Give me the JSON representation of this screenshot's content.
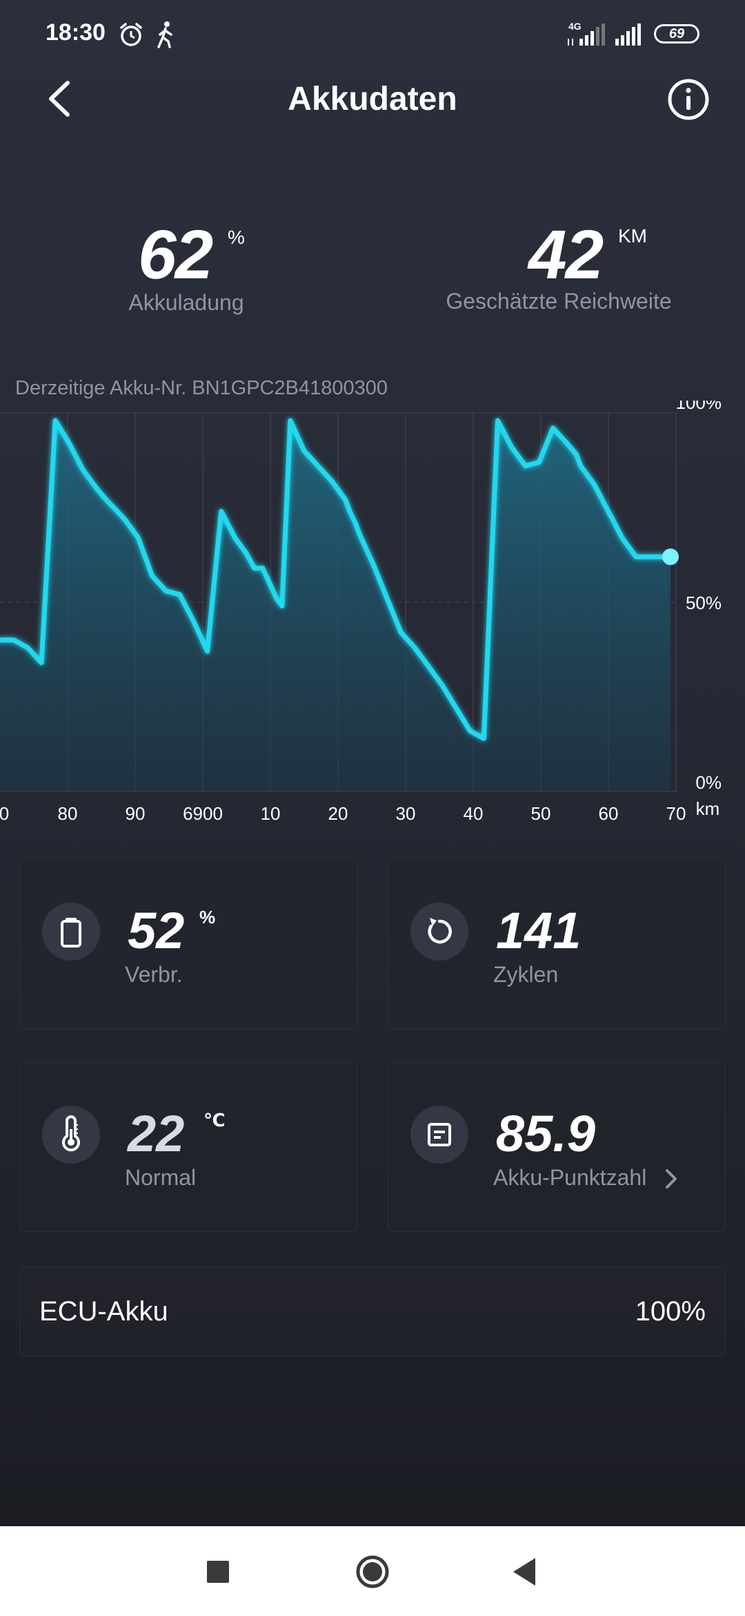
{
  "status_bar": {
    "time": "18:30",
    "network": "4G",
    "battery": "69"
  },
  "header": {
    "title": "Akkudaten"
  },
  "summary": {
    "charge_value": "62",
    "charge_unit": "%",
    "charge_label": "Akkuladung",
    "range_value": "42",
    "range_unit": "KM",
    "range_label": "Geschätzte Reichweite"
  },
  "battery_number": "Derzeitige Akku-Nr. BN1GPC2B41800300",
  "chart_data": {
    "type": "area",
    "xlabel": "km",
    "x_tick_labels": [
      "0",
      "80",
      "90",
      "6900",
      "10",
      "20",
      "30",
      "40",
      "50",
      "60",
      "70"
    ],
    "y_tick_labels": [
      "100%",
      "50%",
      "0%"
    ],
    "ylim": [
      0,
      100
    ],
    "grid": true,
    "accent_color": "#22d8ee",
    "series": [
      {
        "x": [
          0,
          1,
          2,
          3,
          4,
          5,
          6,
          7,
          7.7,
          9,
          10,
          11,
          12,
          13,
          14,
          15,
          16,
          17,
          17.8,
          18.4,
          19,
          20,
          20.4,
          21,
          22,
          23,
          24,
          25,
          25.3,
          25.7,
          26,
          27,
          28,
          29,
          30,
          31,
          32,
          33,
          34,
          35,
          36,
          37,
          38,
          39,
          40,
          41,
          41.7,
          41.9,
          42,
          43,
          44,
          44.3,
          45,
          46,
          47,
          48,
          48.5
        ],
        "y": [
          40,
          40,
          38,
          34,
          98,
          92,
          85,
          80,
          77,
          72,
          67,
          57,
          53,
          52,
          45,
          37,
          74,
          67,
          63,
          59,
          59,
          51,
          49,
          98,
          90,
          86,
          82,
          77,
          74,
          71,
          68,
          60,
          51,
          42,
          38,
          33,
          28,
          22,
          16,
          14,
          98,
          91,
          86,
          87,
          96,
          92,
          89,
          87,
          86,
          81,
          74,
          72,
          67,
          62,
          62,
          62,
          62
        ]
      }
    ]
  },
  "cards": {
    "usage": {
      "value": "52",
      "unit": "%",
      "label": "Verbr."
    },
    "cycles": {
      "value": "141",
      "label": "Zyklen"
    },
    "temp": {
      "value": "22",
      "unit": "℃",
      "label": "Normal"
    },
    "score": {
      "value": "85.9",
      "label": "Akku-Punktzahl"
    }
  },
  "ecu": {
    "label": "ECU-Akku",
    "value": "100%"
  },
  "icons": [
    "alarm-icon",
    "walk-icon",
    "signal-icon",
    "battery-icon",
    "back-icon",
    "info-icon",
    "battery-usage-icon",
    "refresh-icon",
    "thermometer-icon",
    "document-icon",
    "chevron-right-icon",
    "square-icon",
    "circle-icon",
    "triangle-back-icon"
  ]
}
